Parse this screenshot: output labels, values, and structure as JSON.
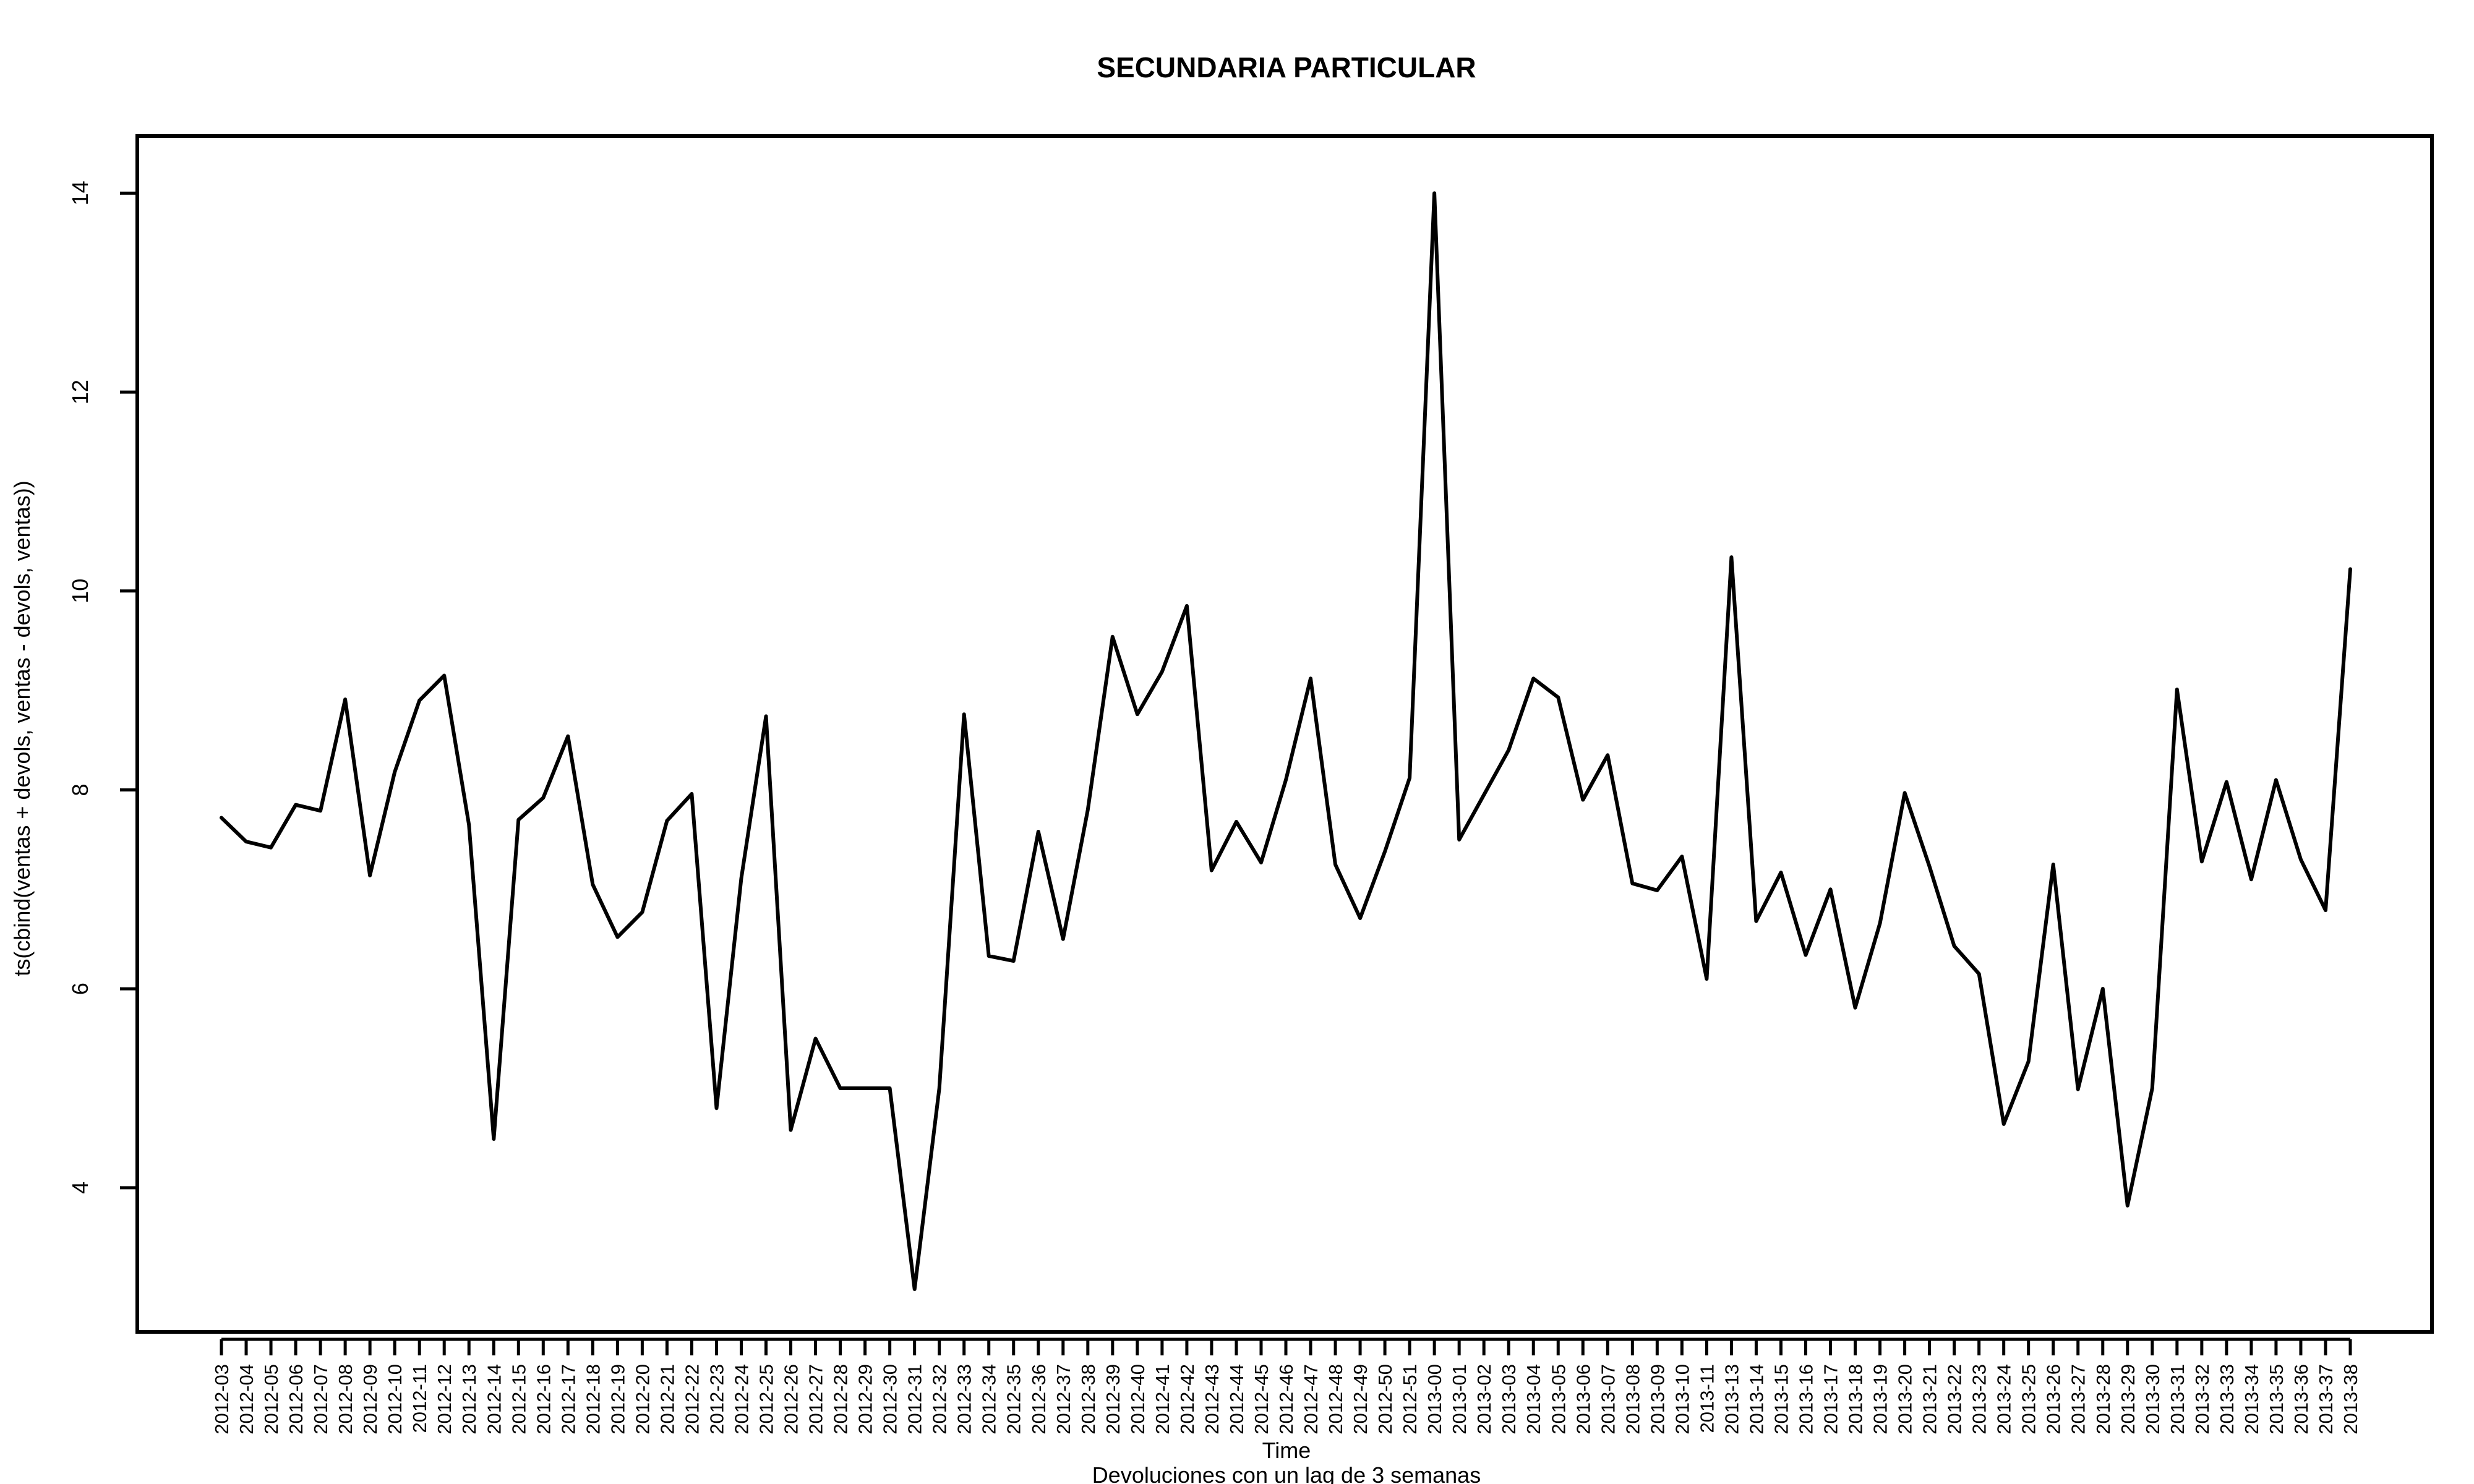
{
  "chart_data": {
    "type": "line",
    "title": "SECUNDARIA PARTICULAR",
    "xlabel": "Time",
    "subtitle": "Devoluciones con un lag de 3 semanas",
    "ylabel": "ts(cbind(ventas + devols, ventas - devols, ventas))",
    "ylim": [
      2.6,
      14.5
    ],
    "yticks": [
      4,
      6,
      8,
      10,
      12,
      14
    ],
    "grid": false,
    "categories": [
      "2012-03",
      "2012-04",
      "2012-05",
      "2012-06",
      "2012-07",
      "2012-08",
      "2012-09",
      "2012-10",
      "2012-11",
      "2012-12",
      "2012-13",
      "2012-14",
      "2012-15",
      "2012-16",
      "2012-17",
      "2012-18",
      "2012-19",
      "2012-20",
      "2012-21",
      "2012-22",
      "2012-23",
      "2012-24",
      "2012-25",
      "2012-26",
      "2012-27",
      "2012-28",
      "2012-29",
      "2012-30",
      "2012-31",
      "2012-32",
      "2012-33",
      "2012-34",
      "2012-35",
      "2012-36",
      "2012-37",
      "2012-38",
      "2012-39",
      "2012-40",
      "2012-41",
      "2012-42",
      "2012-43",
      "2012-44",
      "2012-45",
      "2012-46",
      "2012-47",
      "2012-48",
      "2012-49",
      "2012-50",
      "2012-51",
      "2013-00",
      "2013-01",
      "2013-02",
      "2013-03",
      "2013-04",
      "2013-05",
      "2013-06",
      "2013-07",
      "2013-08",
      "2013-09",
      "2013-10",
      "2013-11",
      "2013-13",
      "2013-14",
      "2013-15",
      "2013-16",
      "2013-17",
      "2013-18",
      "2013-19",
      "2013-20",
      "2013-21",
      "2013-22",
      "2013-23",
      "2013-24",
      "2013-25",
      "2013-26",
      "2013-27",
      "2013-28",
      "2013-29",
      "2013-30",
      "2013-31",
      "2013-32",
      "2013-33",
      "2013-34",
      "2013-35",
      "2013-36",
      "2013-37",
      "2013-38"
    ],
    "series": [
      {
        "values": [
          7.72,
          7.48,
          7.42,
          7.85,
          7.79,
          8.91,
          7.14,
          8.18,
          8.9,
          9.15,
          7.65,
          4.49,
          7.7,
          7.92,
          8.54,
          7.05,
          6.52,
          6.77,
          7.69,
          7.96,
          4.8,
          7.11,
          8.74,
          4.58,
          5.5,
          5.0,
          5.0,
          5.0,
          2.98,
          5.0,
          8.76,
          6.33,
          6.28,
          7.58,
          6.5,
          7.8,
          9.54,
          8.76,
          9.19,
          9.85,
          7.19,
          7.68,
          7.27,
          8.1,
          9.12,
          7.25,
          6.71,
          7.38,
          8.12,
          14.0,
          7.5,
          7.95,
          8.4,
          9.12,
          8.93,
          7.9,
          8.35,
          7.06,
          6.99,
          7.33,
          6.1,
          10.34,
          6.68,
          7.17,
          6.34,
          7.0,
          5.81,
          6.66,
          7.97,
          7.23,
          6.43,
          6.15,
          4.64,
          5.27,
          7.25,
          4.99,
          6.0,
          3.82,
          5.0,
          9.01,
          7.28,
          8.08,
          7.1,
          8.1,
          7.3,
          6.79,
          10.22
        ]
      }
    ]
  }
}
